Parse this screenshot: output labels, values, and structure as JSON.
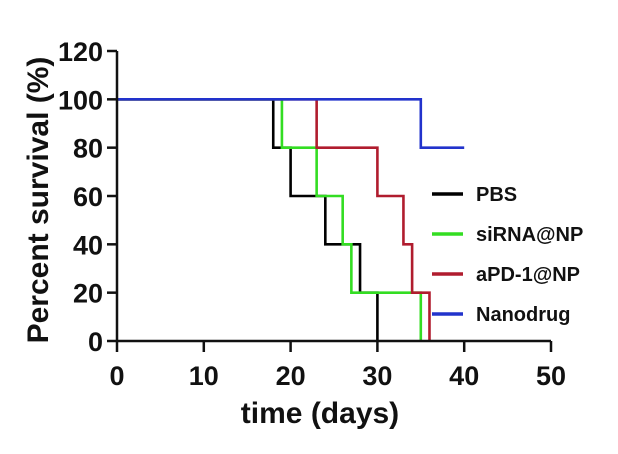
{
  "chart_data": {
    "type": "line",
    "subtype": "kaplan-meier-step",
    "title": "",
    "xlabel": "time (days)",
    "ylabel": "Percent survival (%)",
    "xlim": [
      0,
      50
    ],
    "ylim": [
      0,
      120
    ],
    "xticks": [
      0,
      10,
      20,
      30,
      40,
      50
    ],
    "yticks": [
      0,
      20,
      40,
      60,
      80,
      100,
      120
    ],
    "grid": false,
    "legend_position": "right",
    "series": [
      {
        "name": "PBS",
        "color": "#000000",
        "x": [
          0,
          18,
          20,
          24,
          28,
          30
        ],
        "y": [
          100,
          80,
          60,
          40,
          20,
          0
        ]
      },
      {
        "name": "siRNA@NP",
        "color": "#33dd22",
        "x": [
          0,
          19,
          23,
          26,
          27,
          35
        ],
        "y": [
          100,
          80,
          60,
          40,
          20,
          0
        ]
      },
      {
        "name": "aPD-1@NP",
        "color": "#b01c2e",
        "x": [
          0,
          23,
          30,
          33,
          34,
          36
        ],
        "y": [
          100,
          80,
          60,
          40,
          20,
          0
        ]
      },
      {
        "name": "Nanodrug",
        "color": "#2233cc",
        "x": [
          0,
          35,
          40
        ],
        "y": [
          100,
          80,
          80
        ]
      }
    ]
  }
}
